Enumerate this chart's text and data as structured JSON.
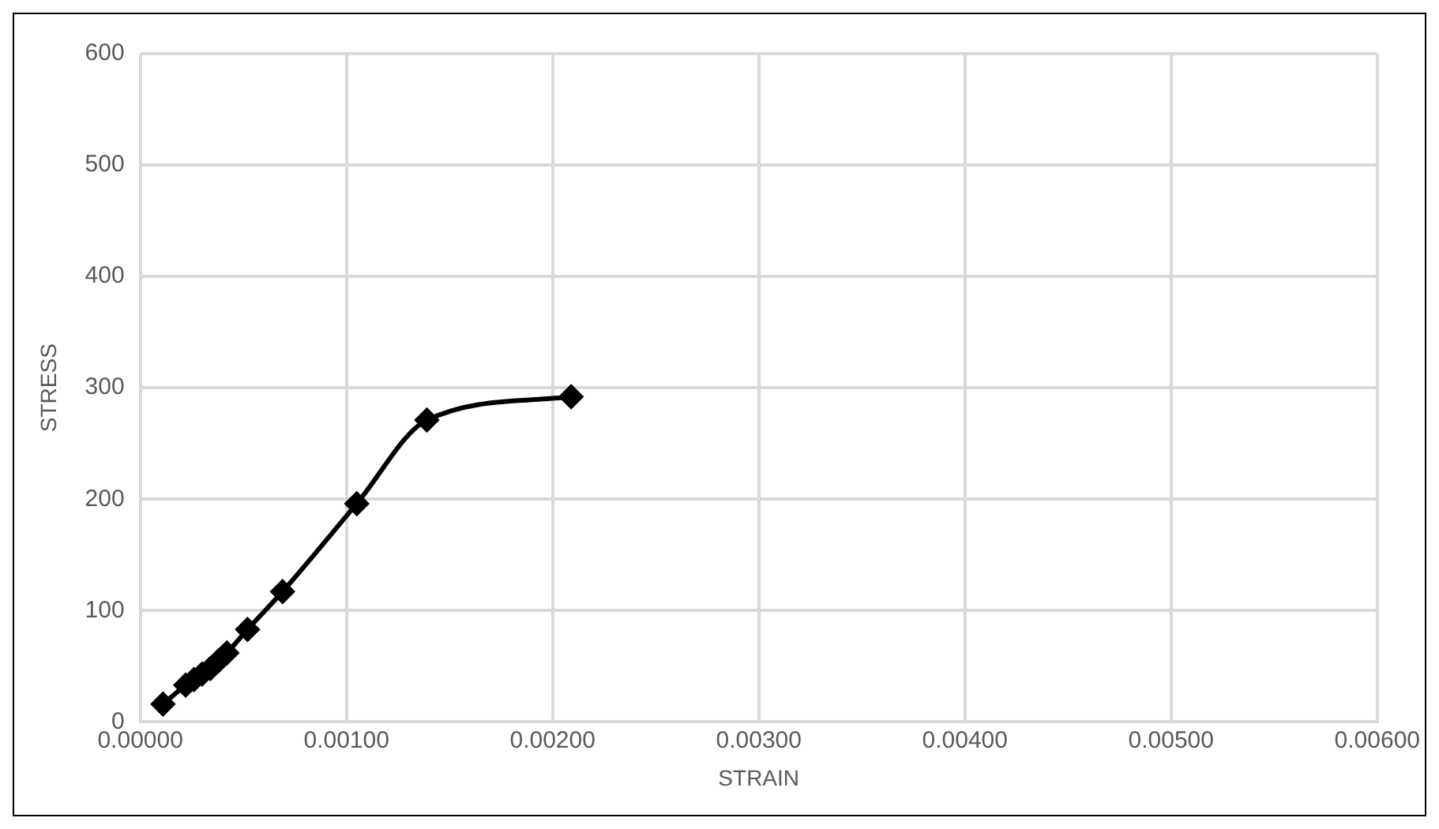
{
  "chart_data": {
    "type": "line",
    "xlabel": "STRAIN",
    "ylabel": "STRESS",
    "series": [
      {
        "color": "#000000",
        "x": [
          0.00011,
          0.00022,
          0.00026,
          0.0003,
          0.00034,
          0.00038,
          0.00042,
          0.00052,
          0.00069,
          0.00105,
          0.00139,
          0.00209
        ],
        "values": [
          16,
          33,
          38,
          43,
          48,
          55,
          62,
          83,
          117,
          196,
          271,
          292
        ]
      }
    ],
    "xlim": [
      0,
      0.006
    ],
    "xticks": [
      {
        "value": 0,
        "label": "0.00000"
      },
      {
        "value": 0.001,
        "label": "0.00100"
      },
      {
        "value": 0.002,
        "label": "0.00200"
      },
      {
        "value": 0.003,
        "label": "0.00300"
      },
      {
        "value": 0.004,
        "label": "0.00400"
      },
      {
        "value": 0.005,
        "label": "0.00500"
      },
      {
        "value": 0.006,
        "label": "0.00600"
      }
    ],
    "ylim": [
      0,
      600
    ],
    "yticks": [
      0,
      100,
      200,
      300,
      400,
      500,
      600
    ],
    "grid": true,
    "legend": false,
    "marker": "diamond",
    "line_style": "solid"
  }
}
